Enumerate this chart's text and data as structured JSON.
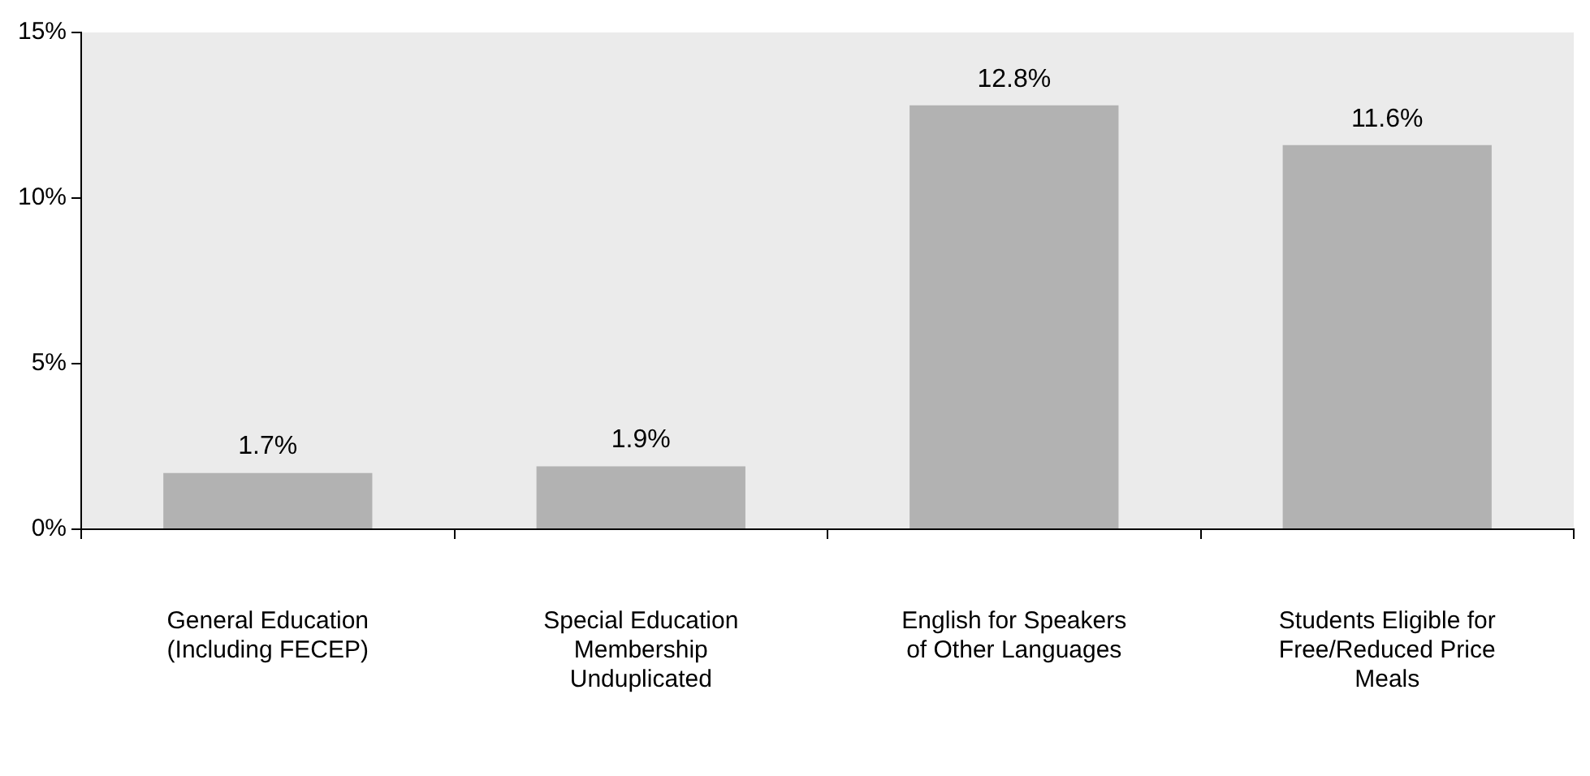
{
  "chart_data": {
    "type": "bar",
    "categories": [
      "General Education (Including FECEP)",
      "Special Education Membership Unduplicated",
      "English for Speakers of Other Languages",
      "Students Eligible for Free/Reduced Price Meals"
    ],
    "values": [
      1.7,
      1.9,
      12.8,
      11.6
    ],
    "value_labels": [
      "1.7%",
      "1.9%",
      "12.8%",
      "11.6%"
    ],
    "color": "#b2b2b2",
    "ylim": [
      0,
      15
    ],
    "yticks": [
      {
        "value": 0,
        "label": "0%"
      },
      {
        "value": 5,
        "label": "5%"
      },
      {
        "value": 10,
        "label": "10%"
      },
      {
        "value": 15,
        "label": "15%"
      }
    ],
    "grid": false,
    "legend": false
  }
}
